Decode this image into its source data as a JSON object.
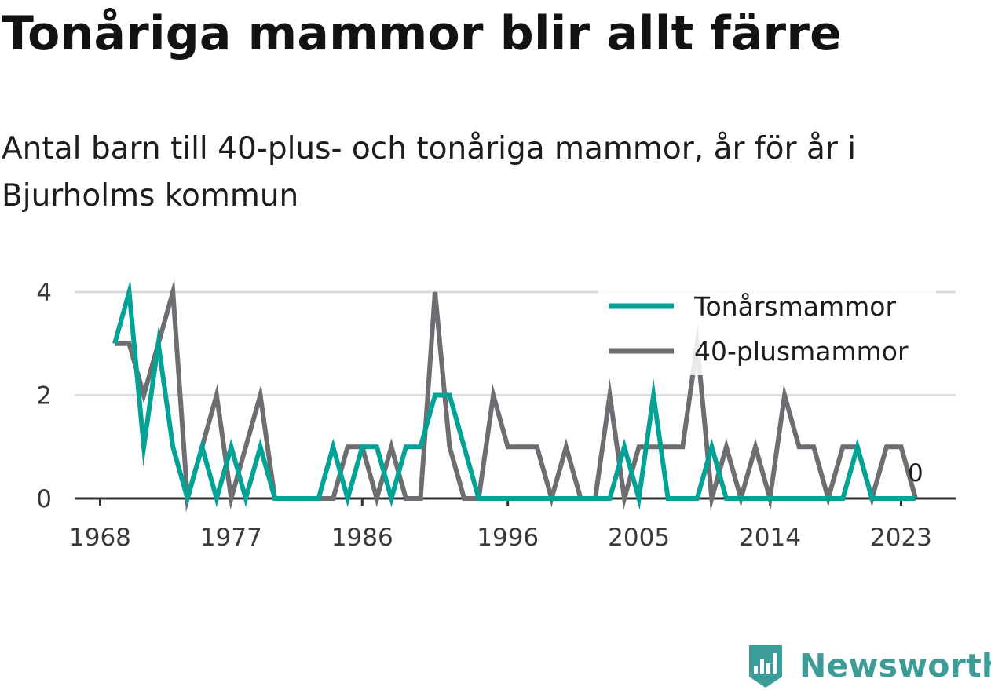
{
  "chart_data": {
    "type": "line",
    "title": "Tonåriga mammor blir allt färre",
    "subtitle": "Antal barn till 40-plus- och tonåriga mammor, år för år i Bjurholms kommun",
    "x": [
      1969,
      1970,
      1971,
      1972,
      1973,
      1974,
      1975,
      1976,
      1977,
      1978,
      1979,
      1980,
      1981,
      1982,
      1983,
      1984,
      1985,
      1986,
      1987,
      1988,
      1989,
      1990,
      1991,
      1992,
      1993,
      1994,
      1995,
      1996,
      1997,
      1998,
      1999,
      2000,
      2001,
      2002,
      2003,
      2004,
      2005,
      2006,
      2007,
      2008,
      2009,
      2010,
      2011,
      2012,
      2013,
      2014,
      2015,
      2016,
      2017,
      2018,
      2019,
      2020,
      2021,
      2022,
      2023,
      2024
    ],
    "series": [
      {
        "name": "Tonårsmammor",
        "color": "#00a396",
        "values": [
          3,
          4,
          1,
          3,
          1,
          0,
          1,
          0,
          1,
          0,
          1,
          0,
          0,
          0,
          0,
          1,
          0,
          1,
          1,
          0,
          1,
          1,
          2,
          2,
          1,
          0,
          0,
          0,
          0,
          0,
          0,
          0,
          0,
          0,
          0,
          1,
          0,
          2,
          0,
          0,
          0,
          1,
          0,
          0,
          0,
          0,
          0,
          0,
          0,
          0,
          0,
          1,
          0,
          0,
          0,
          0
        ]
      },
      {
        "name": "40-plusmammor",
        "color": "#6e6d72",
        "values": [
          3,
          3,
          2,
          3,
          4,
          0,
          1,
          2,
          0,
          1,
          2,
          0,
          0,
          0,
          0,
          0,
          1,
          1,
          0,
          1,
          0,
          0,
          4,
          1,
          0,
          0,
          2,
          1,
          1,
          1,
          0,
          1,
          0,
          0,
          2,
          0,
          1,
          1,
          1,
          1,
          3,
          0,
          1,
          0,
          1,
          0,
          2,
          1,
          1,
          0,
          1,
          1,
          0,
          1,
          1,
          0
        ]
      }
    ],
    "xticks": [
      "1968",
      "1977",
      "1986",
      "1996",
      "2005",
      "2014",
      "2023"
    ],
    "yticks": [
      "0",
      "2",
      "4"
    ],
    "ylim": [
      0,
      4
    ],
    "end_label": "0",
    "grid": "horizontal",
    "legend": "top-right"
  },
  "branding": {
    "logo_text": "Newsworthy",
    "logo_icon": "bar-chart-badge-icon",
    "color": "#3e9c98"
  }
}
